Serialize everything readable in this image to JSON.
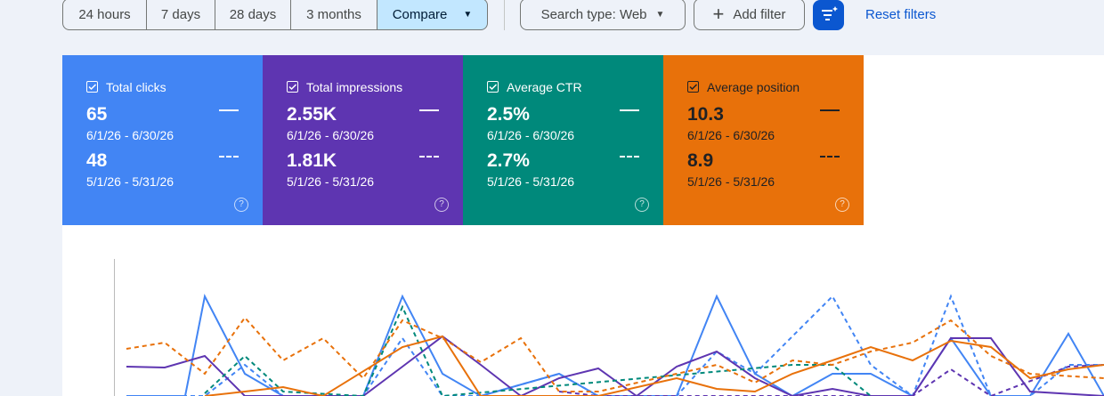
{
  "toolbar": {
    "date_ranges": [
      "24 hours",
      "7 days",
      "28 days",
      "3 months"
    ],
    "compare": "Compare",
    "search_type": "Search type: Web",
    "add_filter": "Add filter",
    "reset_filters": "Reset filters"
  },
  "cards": [
    {
      "label": "Total clicks",
      "current_value": "65",
      "current_range": "6/1/26 - 6/30/26",
      "previous_value": "48",
      "previous_range": "5/1/26 - 5/31/26",
      "color": "#4285f4"
    },
    {
      "label": "Total impressions",
      "current_value": "2.55K",
      "current_range": "6/1/26 - 6/30/26",
      "previous_value": "1.81K",
      "previous_range": "5/1/26 - 5/31/26",
      "color": "#5e35b1"
    },
    {
      "label": "Average CTR",
      "current_value": "2.5%",
      "current_range": "6/1/26 - 6/30/26",
      "previous_value": "2.7%",
      "previous_range": "5/1/26 - 5/31/26",
      "color": "#00897b"
    },
    {
      "label": "Average position",
      "current_value": "10.3",
      "current_range": "6/1/26 - 6/30/26",
      "previous_value": "8.9",
      "previous_range": "5/1/26 - 5/31/26",
      "color": "#e8710a"
    }
  ]
}
